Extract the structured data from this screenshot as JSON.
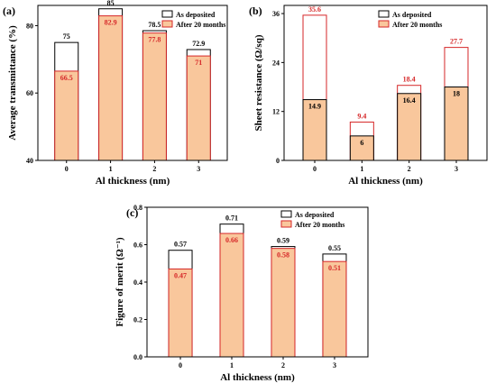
{
  "chart_data": [
    {
      "panel_label": "(a)",
      "type": "bar",
      "categories": [
        "0",
        "1",
        "2",
        "3"
      ],
      "series": [
        {
          "name": "As deposited",
          "values": [
            75,
            85,
            78.5,
            72.9
          ],
          "labels": [
            "75",
            "85",
            "78.5",
            "72.9"
          ]
        },
        {
          "name": "After 20 months",
          "values": [
            66.5,
            82.9,
            77.8,
            71
          ],
          "labels": [
            "66.5",
            "82.9",
            "77.8",
            "71"
          ]
        }
      ],
      "xlabel": "Al thickness (nm)",
      "ylabel": "Average transmittance (%)",
      "ylim": [
        40,
        86
      ],
      "yticks": [
        40,
        60,
        80
      ],
      "ytick_labels": [
        "40",
        "60",
        "80"
      ],
      "legend": "top-right"
    },
    {
      "panel_label": "(b)",
      "type": "bar",
      "categories": [
        "0",
        "1",
        "2",
        "3"
      ],
      "series": [
        {
          "name": "As deposited",
          "values": [
            14.9,
            6,
            16.4,
            18
          ],
          "labels": [
            "14.9",
            "6",
            "16.4",
            "18"
          ]
        },
        {
          "name": "After 20 months",
          "values": [
            35.6,
            9.4,
            18.4,
            27.7
          ],
          "labels": [
            "35.6",
            "9.4",
            "18.4",
            "27.7"
          ]
        }
      ],
      "xlabel": "Al thickness (nm)",
      "ylabel": "Sheet resistance (Ω/sq)",
      "ylim": [
        0,
        38
      ],
      "yticks": [
        0,
        12,
        24,
        36
      ],
      "ytick_labels": [
        "0",
        "12",
        "24",
        "36"
      ],
      "legend": "top-right"
    },
    {
      "panel_label": "(c)",
      "type": "bar",
      "categories": [
        "0",
        "1",
        "2",
        "3"
      ],
      "series": [
        {
          "name": "As deposited",
          "values": [
            0.57,
            0.71,
            0.59,
            0.55
          ],
          "labels": [
            "0.57",
            "0.71",
            "0.59",
            "0.55"
          ]
        },
        {
          "name": "After 20 months",
          "values": [
            0.47,
            0.66,
            0.58,
            0.51
          ],
          "labels": [
            "0.47",
            "0.66",
            "0.58",
            "0.51"
          ]
        }
      ],
      "xlabel": "Al thickness (nm)",
      "ylabel": "Figure of merit (Ω⁻¹)",
      "ylim": [
        0,
        0.8
      ],
      "yticks": [
        0,
        0.2,
        0.4,
        0.6,
        0.8
      ],
      "ytick_labels": [
        "0.0",
        "0.2",
        "0.4",
        "0.6",
        "0.8"
      ],
      "legend": "top-right"
    }
  ],
  "colors": {
    "as_deposited_fill": "#ffffff",
    "as_deposited_stroke": "#000000",
    "after_fill": "#f9c79c",
    "after_stroke": "#d62728",
    "after_label": "#d62728"
  }
}
